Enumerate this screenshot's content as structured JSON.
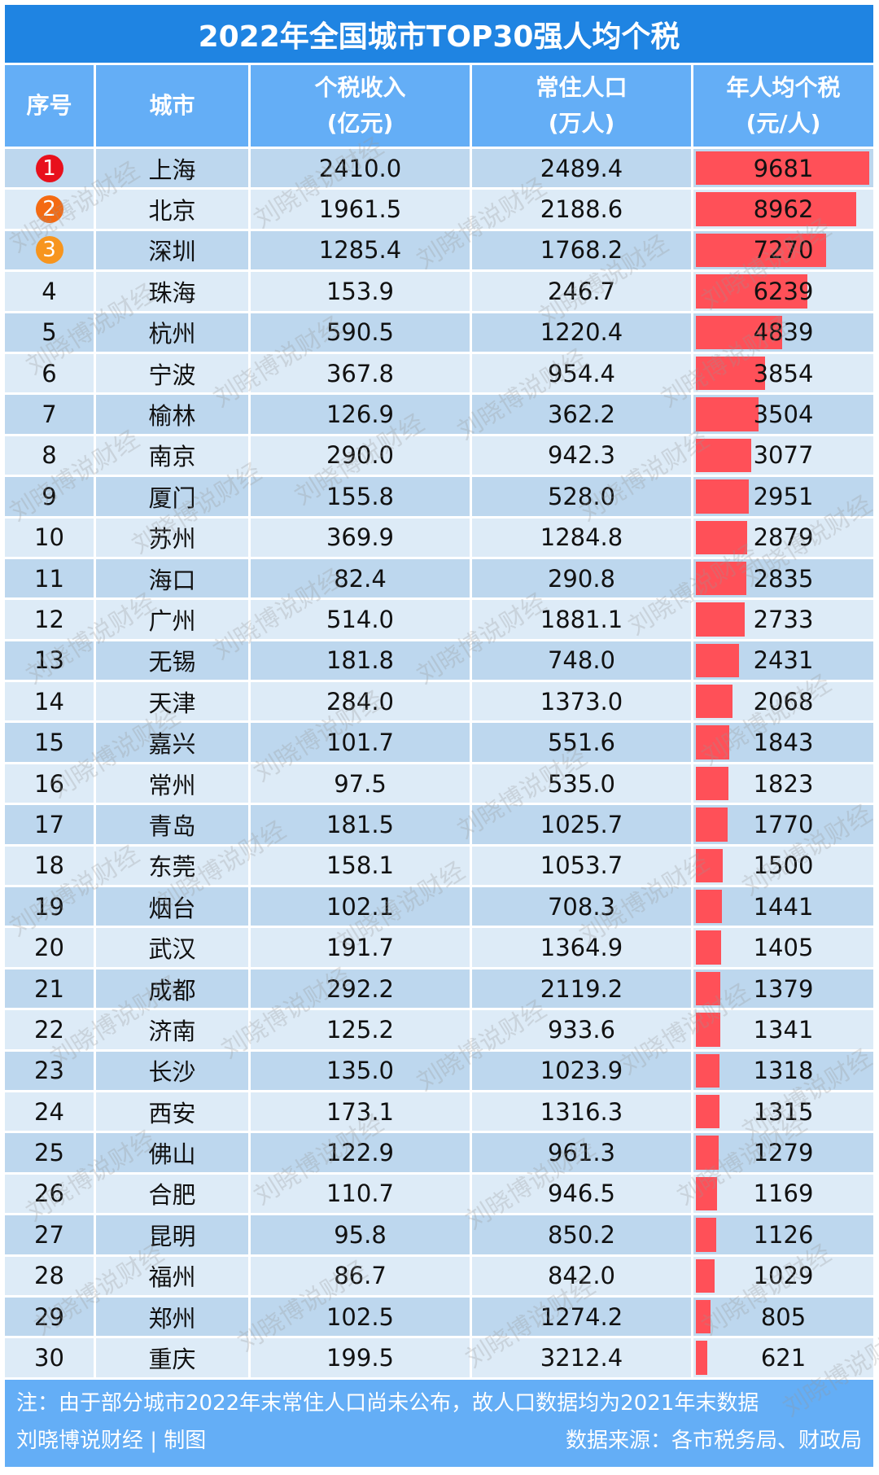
{
  "title": "2022年全国城市TOP30强人均个税",
  "headers": [
    {
      "line1": "序号",
      "line2": ""
    },
    {
      "line1": "城市",
      "line2": ""
    },
    {
      "line1": "个税收入",
      "line2": "(亿元)"
    },
    {
      "line1": "常住人口",
      "line2": "(万人)"
    },
    {
      "line1": "年人均个税",
      "line2": "(元/人)"
    }
  ],
  "rank_badge_colors": [
    "#E8101C",
    "#F46A12",
    "#F7951E"
  ],
  "bar_color": "#FF5058",
  "rows": [
    {
      "rank": "1",
      "city": "上海",
      "tax": "2410.0",
      "pop": "2489.4",
      "per": "9681"
    },
    {
      "rank": "2",
      "city": "北京",
      "tax": "1961.5",
      "pop": "2188.6",
      "per": "8962"
    },
    {
      "rank": "3",
      "city": "深圳",
      "tax": "1285.4",
      "pop": "1768.2",
      "per": "7270"
    },
    {
      "rank": "4",
      "city": "珠海",
      "tax": "153.9",
      "pop": "246.7",
      "per": "6239"
    },
    {
      "rank": "5",
      "city": "杭州",
      "tax": "590.5",
      "pop": "1220.4",
      "per": "4839"
    },
    {
      "rank": "6",
      "city": "宁波",
      "tax": "367.8",
      "pop": "954.4",
      "per": "3854"
    },
    {
      "rank": "7",
      "city": "榆林",
      "tax": "126.9",
      "pop": "362.2",
      "per": "3504"
    },
    {
      "rank": "8",
      "city": "南京",
      "tax": "290.0",
      "pop": "942.3",
      "per": "3077"
    },
    {
      "rank": "9",
      "city": "厦门",
      "tax": "155.8",
      "pop": "528.0",
      "per": "2951"
    },
    {
      "rank": "10",
      "city": "苏州",
      "tax": "369.9",
      "pop": "1284.8",
      "per": "2879"
    },
    {
      "rank": "11",
      "city": "海口",
      "tax": "82.4",
      "pop": "290.8",
      "per": "2835"
    },
    {
      "rank": "12",
      "city": "广州",
      "tax": "514.0",
      "pop": "1881.1",
      "per": "2733"
    },
    {
      "rank": "13",
      "city": "无锡",
      "tax": "181.8",
      "pop": "748.0",
      "per": "2431"
    },
    {
      "rank": "14",
      "city": "天津",
      "tax": "284.0",
      "pop": "1373.0",
      "per": "2068"
    },
    {
      "rank": "15",
      "city": "嘉兴",
      "tax": "101.7",
      "pop": "551.6",
      "per": "1843"
    },
    {
      "rank": "16",
      "city": "常州",
      "tax": "97.5",
      "pop": "535.0",
      "per": "1823"
    },
    {
      "rank": "17",
      "city": "青岛",
      "tax": "181.5",
      "pop": "1025.7",
      "per": "1770"
    },
    {
      "rank": "18",
      "city": "东莞",
      "tax": "158.1",
      "pop": "1053.7",
      "per": "1500"
    },
    {
      "rank": "19",
      "city": "烟台",
      "tax": "102.1",
      "pop": "708.3",
      "per": "1441"
    },
    {
      "rank": "20",
      "city": "武汉",
      "tax": "191.7",
      "pop": "1364.9",
      "per": "1405"
    },
    {
      "rank": "21",
      "city": "成都",
      "tax": "292.2",
      "pop": "2119.2",
      "per": "1379"
    },
    {
      "rank": "22",
      "city": "济南",
      "tax": "125.2",
      "pop": "933.6",
      "per": "1341"
    },
    {
      "rank": "23",
      "city": "长沙",
      "tax": "135.0",
      "pop": "1023.9",
      "per": "1318"
    },
    {
      "rank": "24",
      "city": "西安",
      "tax": "173.1",
      "pop": "1316.3",
      "per": "1315"
    },
    {
      "rank": "25",
      "city": "佛山",
      "tax": "122.9",
      "pop": "961.3",
      "per": "1279"
    },
    {
      "rank": "26",
      "city": "合肥",
      "tax": "110.7",
      "pop": "946.5",
      "per": "1169"
    },
    {
      "rank": "27",
      "city": "昆明",
      "tax": "95.8",
      "pop": "850.2",
      "per": "1126"
    },
    {
      "rank": "28",
      "city": "福州",
      "tax": "86.7",
      "pop": "842.0",
      "per": "1029"
    },
    {
      "rank": "29",
      "city": "郑州",
      "tax": "102.5",
      "pop": "1274.2",
      "per": "805"
    },
    {
      "rank": "30",
      "city": "重庆",
      "tax": "199.5",
      "pop": "3212.4",
      "per": "621"
    }
  ],
  "footer": {
    "note": "注：由于部分城市2022年末常住人口尚未公布，故人口数据均为2021年末数据",
    "author": "刘晓博说财经 | 制图",
    "source": "数据来源：各市税务局、财政局"
  },
  "watermark": "刘晓博说财经",
  "chart_data": {
    "type": "table",
    "title": "2022年全国城市TOP30强人均个税",
    "columns": [
      "序号",
      "城市",
      "个税收入(亿元)",
      "常住人口(万人)",
      "年人均个税(元/人)"
    ],
    "categories": [
      "上海",
      "北京",
      "深圳",
      "珠海",
      "杭州",
      "宁波",
      "榆林",
      "南京",
      "厦门",
      "苏州",
      "海口",
      "广州",
      "无锡",
      "天津",
      "嘉兴",
      "常州",
      "青岛",
      "东莞",
      "烟台",
      "武汉",
      "成都",
      "济南",
      "长沙",
      "西安",
      "佛山",
      "合肥",
      "昆明",
      "福州",
      "郑州",
      "重庆"
    ],
    "series": [
      {
        "name": "个税收入(亿元)",
        "values": [
          2410.0,
          1961.5,
          1285.4,
          153.9,
          590.5,
          367.8,
          126.9,
          290.0,
          155.8,
          369.9,
          82.4,
          514.0,
          181.8,
          284.0,
          101.7,
          97.5,
          181.5,
          158.1,
          102.1,
          191.7,
          292.2,
          125.2,
          135.0,
          173.1,
          122.9,
          110.7,
          95.8,
          86.7,
          102.5,
          199.5
        ]
      },
      {
        "name": "常住人口(万人)",
        "values": [
          2489.4,
          2188.6,
          1768.2,
          246.7,
          1220.4,
          954.4,
          362.2,
          942.3,
          528.0,
          1284.8,
          290.8,
          1881.1,
          748.0,
          1373.0,
          551.6,
          535.0,
          1025.7,
          1053.7,
          708.3,
          1364.9,
          2119.2,
          933.6,
          1023.9,
          1316.3,
          961.3,
          946.5,
          850.2,
          842.0,
          1274.2,
          3212.4
        ]
      },
      {
        "name": "年人均个税(元/人)",
        "values": [
          9681,
          8962,
          7270,
          6239,
          4839,
          3854,
          3504,
          3077,
          2951,
          2879,
          2835,
          2733,
          2431,
          2068,
          1843,
          1823,
          1770,
          1500,
          1441,
          1405,
          1379,
          1341,
          1318,
          1315,
          1279,
          1169,
          1126,
          1029,
          805,
          621
        ],
        "render": "data-bar"
      }
    ],
    "note": "注：由于部分城市2022年末常住人口尚未公布，故人口数据均为2021年末数据",
    "source": "数据来源：各市税务局、财政局"
  }
}
